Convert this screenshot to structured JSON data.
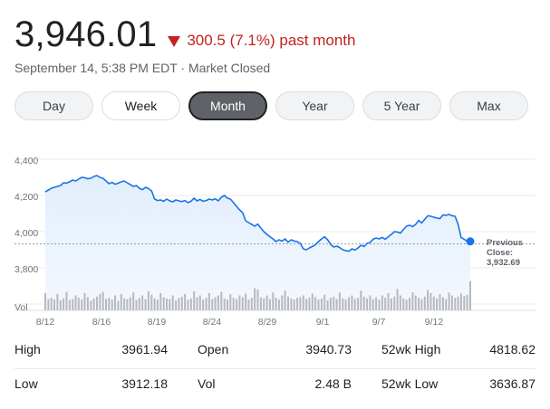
{
  "quote": {
    "price": "3,946.01",
    "change": "300.5 (7.1%) past month",
    "timestamp": "September 14, 5:38 PM EDT · Market Closed",
    "change_color": "#c5221f"
  },
  "tabs": [
    {
      "label": "Day",
      "state": "default"
    },
    {
      "label": "Week",
      "state": "white"
    },
    {
      "label": "Month",
      "state": "selected"
    },
    {
      "label": "Year",
      "state": "default"
    },
    {
      "label": "5 Year",
      "state": "default"
    },
    {
      "label": "Max",
      "state": "default"
    }
  ],
  "chart_data": {
    "type": "line",
    "line_color": "#1a73e8",
    "yticks": [
      "4,400",
      "4,200",
      "4,000",
      "3,800"
    ],
    "ylim": [
      3725,
      4400
    ],
    "xlabels": [
      "8/12",
      "8/16",
      "8/19",
      "8/24",
      "8/29",
      "9/1",
      "9/7",
      "9/12"
    ],
    "volume_label": "Vol",
    "grid": true,
    "previous_close": {
      "label": "Previous Close:",
      "value": "3,932.69",
      "y": 3932.69
    },
    "price_points": [
      4220,
      4230,
      4240,
      4245,
      4250,
      4255,
      4270,
      4268,
      4275,
      4285,
      4280,
      4290,
      4300,
      4298,
      4292,
      4295,
      4305,
      4310,
      4300,
      4295,
      4280,
      4265,
      4272,
      4262,
      4268,
      4275,
      4280,
      4270,
      4260,
      4250,
      4255,
      4240,
      4232,
      4245,
      4238,
      4225,
      4180,
      4172,
      4175,
      4168,
      4180,
      4170,
      4165,
      4175,
      4170,
      4166,
      4172,
      4160,
      4168,
      4185,
      4170,
      4178,
      4168,
      4172,
      4180,
      4175,
      4182,
      4170,
      4190,
      4200,
      4185,
      4180,
      4160,
      4140,
      4120,
      4105,
      4060,
      4050,
      4040,
      4030,
      4042,
      4020,
      4000,
      3985,
      3972,
      3960,
      3945,
      3955,
      3948,
      3960,
      3942,
      3955,
      3948,
      3945,
      3935,
      3905,
      3900,
      3910,
      3918,
      3928,
      3945,
      3960,
      3972,
      3955,
      3930,
      3915,
      3920,
      3912,
      3900,
      3895,
      3892,
      3905,
      3898,
      3910,
      3925,
      3918,
      3935,
      3940,
      3958,
      3965,
      3960,
      3968,
      3958,
      3972,
      3985,
      4000,
      3998,
      3992,
      4012,
      4030,
      4035,
      4028,
      4040,
      4062,
      4048,
      4068,
      4088,
      4085,
      4080,
      4075,
      4072,
      4092,
      4090,
      4095,
      4088,
      4085,
      4040,
      3968,
      3958,
      3948,
      3946
    ],
    "volume_bars": [
      0.58,
      0.38,
      0.42,
      0.36,
      0.55,
      0.34,
      0.4,
      0.62,
      0.35,
      0.38,
      0.5,
      0.42,
      0.36,
      0.58,
      0.44,
      0.32,
      0.4,
      0.46,
      0.55,
      0.62,
      0.38,
      0.42,
      0.36,
      0.5,
      0.32,
      0.55,
      0.4,
      0.38,
      0.44,
      0.6,
      0.35,
      0.42,
      0.5,
      0.38,
      0.64,
      0.52,
      0.4,
      0.36,
      0.58,
      0.44,
      0.4,
      0.38,
      0.5,
      0.34,
      0.42,
      0.46,
      0.55,
      0.36,
      0.4,
      0.64,
      0.44,
      0.5,
      0.36,
      0.42,
      0.58,
      0.38,
      0.44,
      0.5,
      0.62,
      0.4,
      0.36,
      0.54,
      0.42,
      0.38,
      0.5,
      0.44,
      0.56,
      0.36,
      0.42,
      0.74,
      0.7,
      0.44,
      0.4,
      0.5,
      0.38,
      0.6,
      0.42,
      0.36,
      0.5,
      0.66,
      0.46,
      0.4,
      0.36,
      0.42,
      0.44,
      0.5,
      0.38,
      0.42,
      0.56,
      0.44,
      0.36,
      0.4,
      0.52,
      0.34,
      0.42,
      0.46,
      0.38,
      0.6,
      0.4,
      0.36,
      0.44,
      0.5,
      0.38,
      0.42,
      0.66,
      0.46,
      0.4,
      0.5,
      0.38,
      0.44,
      0.36,
      0.5,
      0.42,
      0.58,
      0.4,
      0.46,
      0.72,
      0.5,
      0.4,
      0.36,
      0.42,
      0.6,
      0.5,
      0.42,
      0.38,
      0.46,
      0.68,
      0.58,
      0.46,
      0.4,
      0.54,
      0.44,
      0.38,
      0.6,
      0.5,
      0.42,
      0.46,
      0.56,
      0.48,
      0.52,
      0.98
    ]
  },
  "stats": {
    "high_label": "High",
    "high_value": "3961.94",
    "open_label": "Open",
    "open_value": "3940.73",
    "wk52_high_label": "52wk High",
    "wk52_high_value": "4818.62",
    "low_label": "Low",
    "low_value": "3912.18",
    "vol_label": "Vol",
    "vol_value": "2.48 B",
    "wk52_low_label": "52wk Low",
    "wk52_low_value": "3636.87"
  }
}
